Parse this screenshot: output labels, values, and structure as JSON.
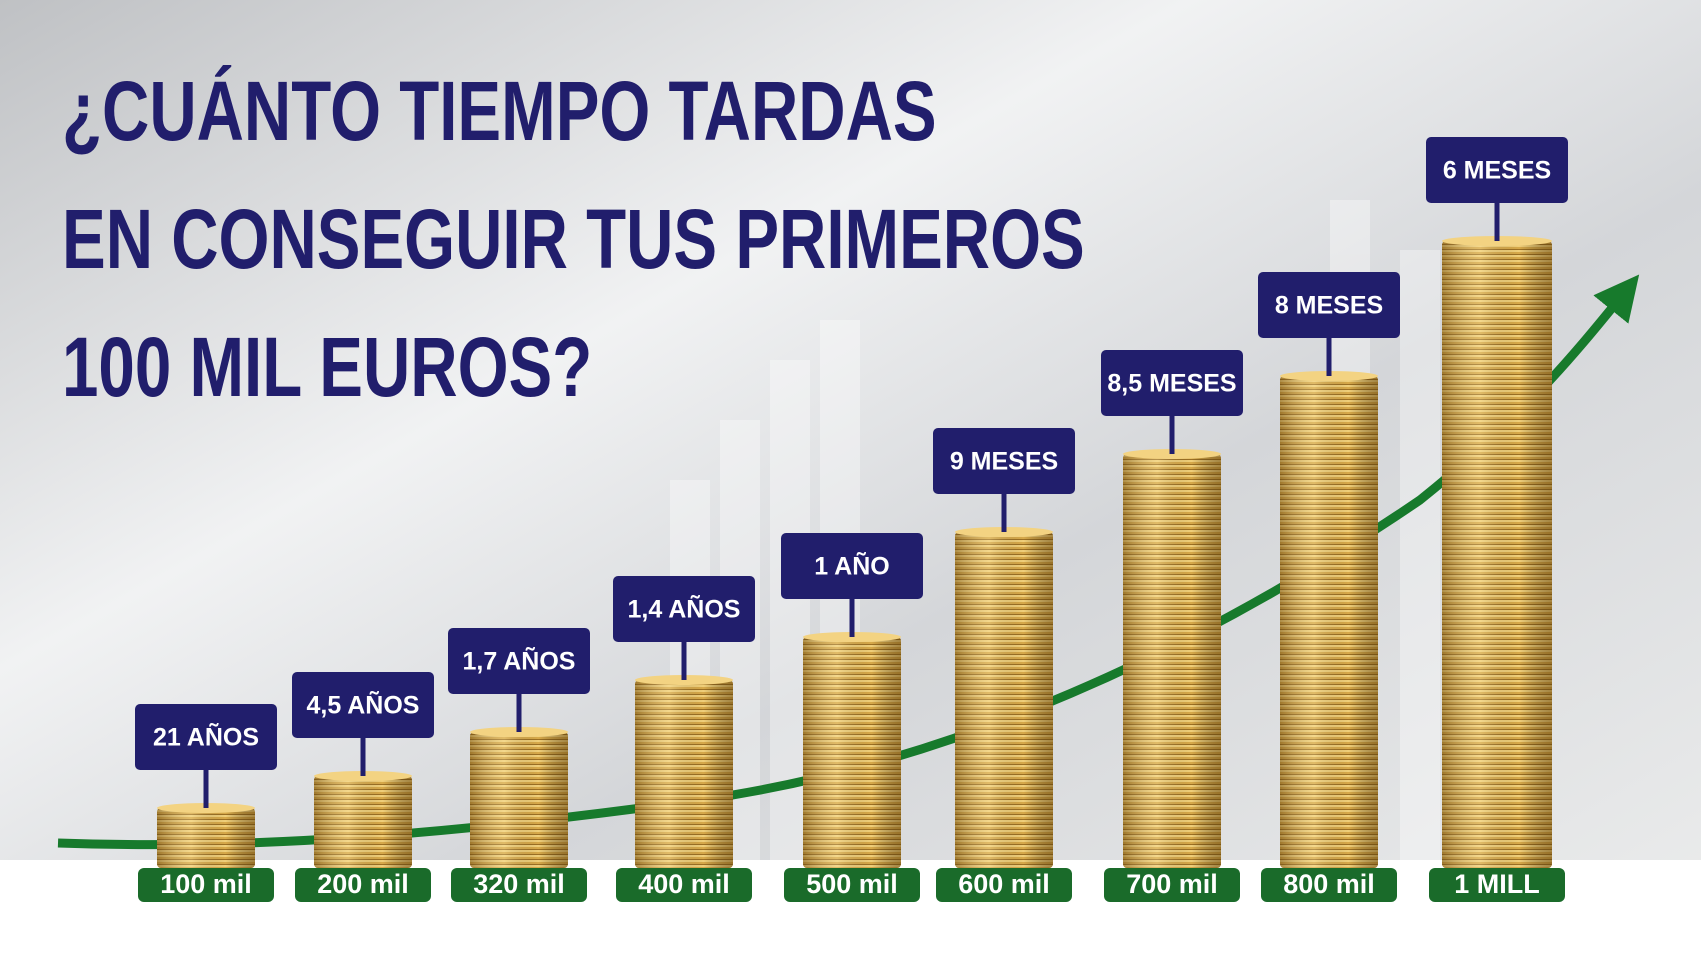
{
  "title_lines": [
    "¿CUÁNTO TIEMPO TARDAS",
    "EN CONSEGUIR TUS PRIMEROS",
    "100 MIL EUROS?"
  ],
  "steps": [
    {
      "amount": "100 mil",
      "time": "21 AÑOS"
    },
    {
      "amount": "200 mil",
      "time": "4,5 AÑOS"
    },
    {
      "amount": "320 mil",
      "time": "1,7 AÑOS"
    },
    {
      "amount": "400 mil",
      "time": "1,4 AÑOS"
    },
    {
      "amount": "500 mil",
      "time": "1 AÑO"
    },
    {
      "amount": "600 mil",
      "time": "9 MESES"
    },
    {
      "amount": "700 mil",
      "time": "8,5 MESES"
    },
    {
      "amount": "800 mil",
      "time": "8 MESES"
    },
    {
      "amount": "1 MILL",
      "time": "6 MESES"
    }
  ]
}
